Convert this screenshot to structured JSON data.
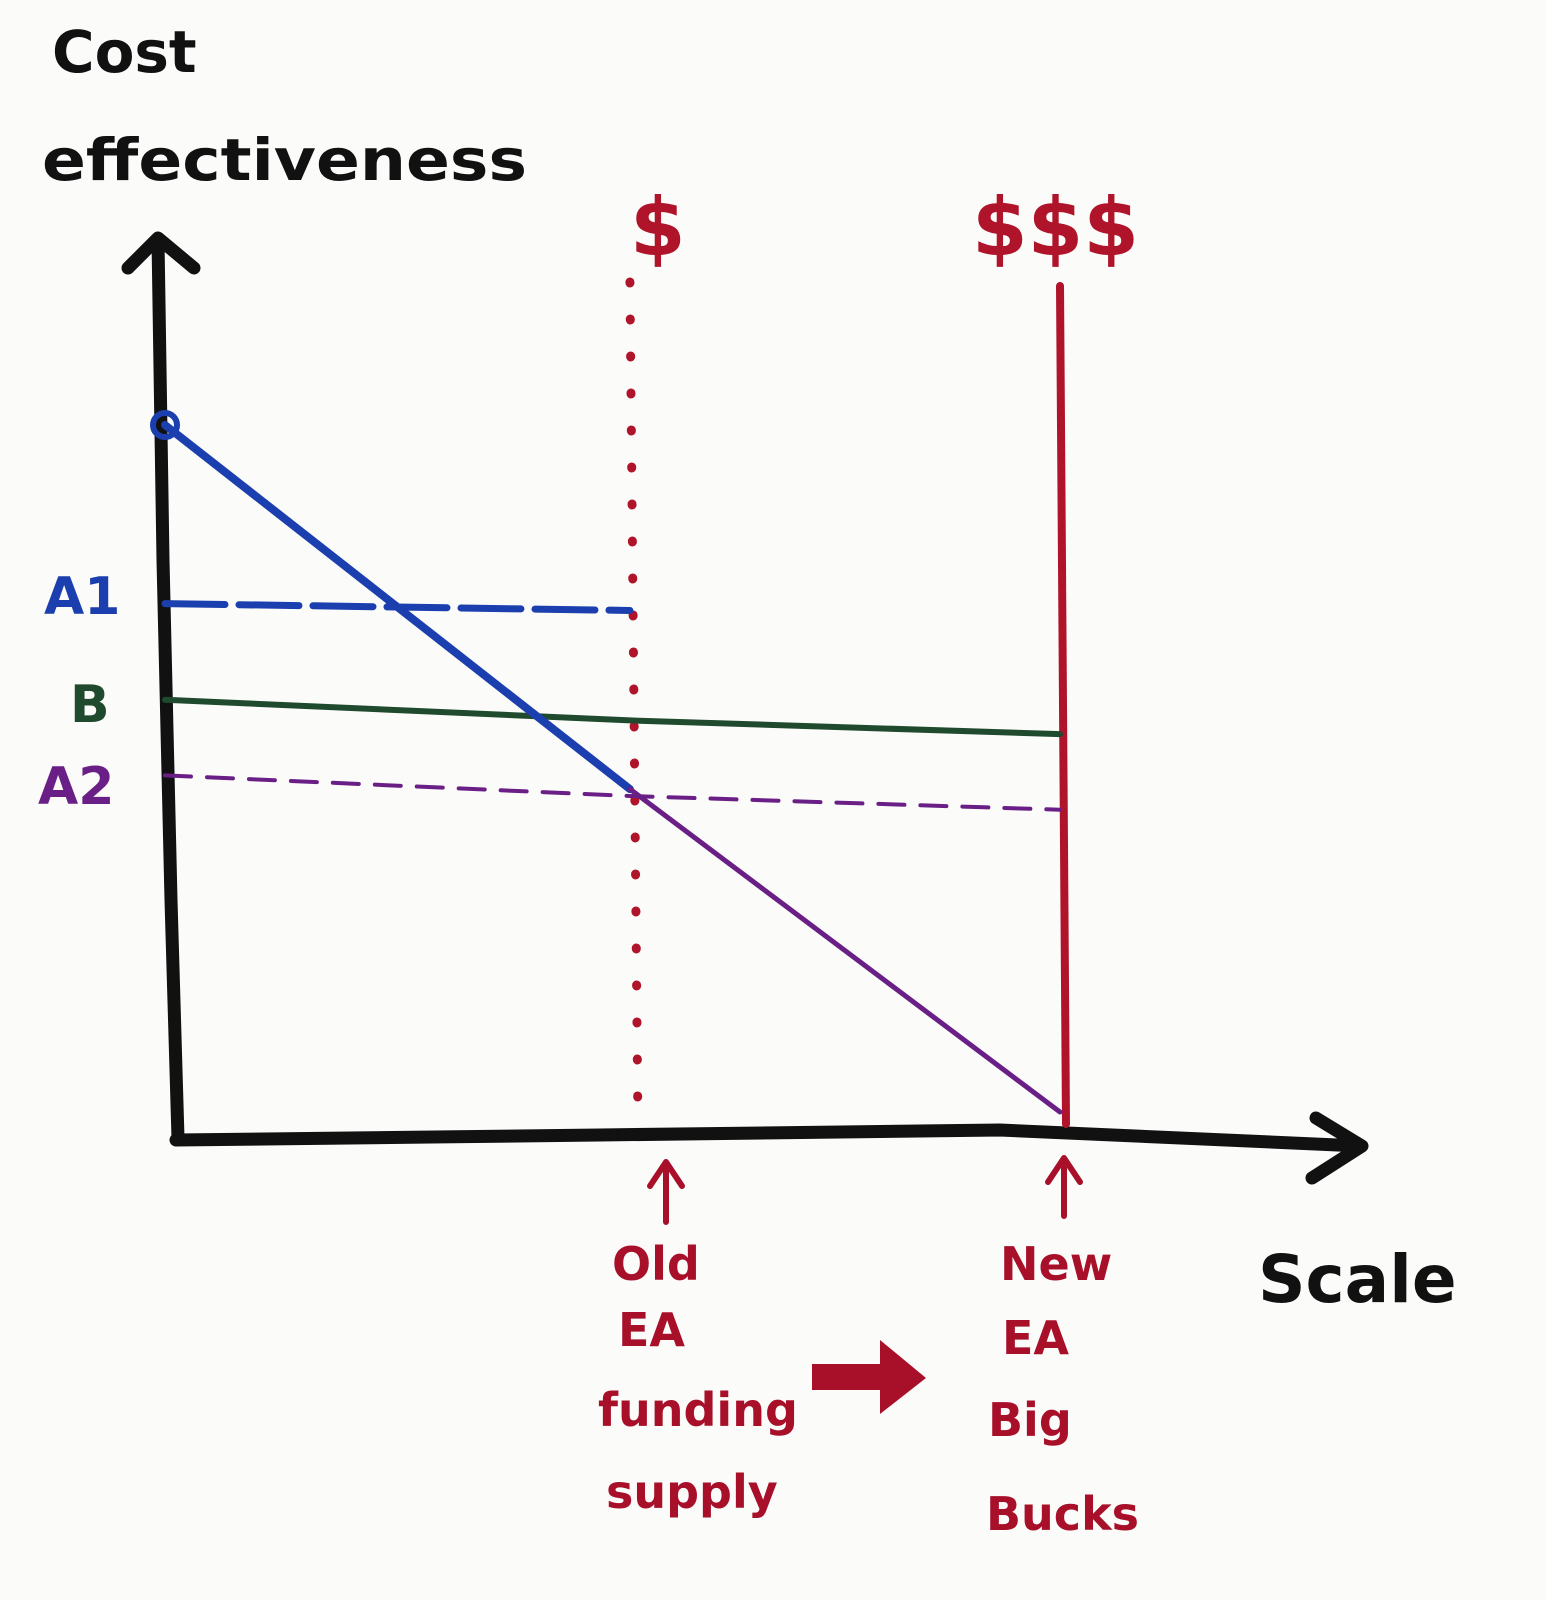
{
  "chart_data": {
    "type": "line",
    "ylabel": [
      "Cost",
      "effectiveness"
    ],
    "xlabel": "Scale",
    "xlim": [
      0,
      100
    ],
    "ylim": [
      0,
      100
    ],
    "colors": {
      "A1": "#1b3fae",
      "B": "#1f4a2e",
      "A2": "#6a1f86",
      "funding": "#b0142a",
      "axis": "#111111"
    },
    "series": [
      {
        "name": "A1",
        "style": "dashed",
        "x": [
          0,
          40
        ],
        "y": [
          74,
          73
        ]
      },
      {
        "name": "B",
        "style": "solid",
        "x": [
          0,
          40,
          77
        ],
        "y": [
          60,
          57,
          55
        ]
      },
      {
        "name": "A2",
        "style": "dashed",
        "x": [
          0,
          40,
          77
        ],
        "y": [
          49,
          46,
          44
        ]
      },
      {
        "name": "",
        "style": "solid",
        "segments": [
          {
            "x": [
              0,
              40
            ],
            "y": [
              100,
              47
            ],
            "color": "A1",
            "marker_start": "circle"
          },
          {
            "x": [
              40,
              77
            ],
            "y": [
              47,
              0
            ],
            "color": "A2"
          }
        ]
      }
    ],
    "vlines": [
      {
        "x": 40,
        "label": "$",
        "style": "dotted",
        "bottom_label": [
          "Old",
          "EA",
          "funding",
          "supply"
        ]
      },
      {
        "x": 77,
        "label": "$$$",
        "style": "solid",
        "bottom_label": [
          "New",
          "EA",
          "Big",
          "Bucks"
        ]
      }
    ],
    "arrow_between_notes": true
  }
}
